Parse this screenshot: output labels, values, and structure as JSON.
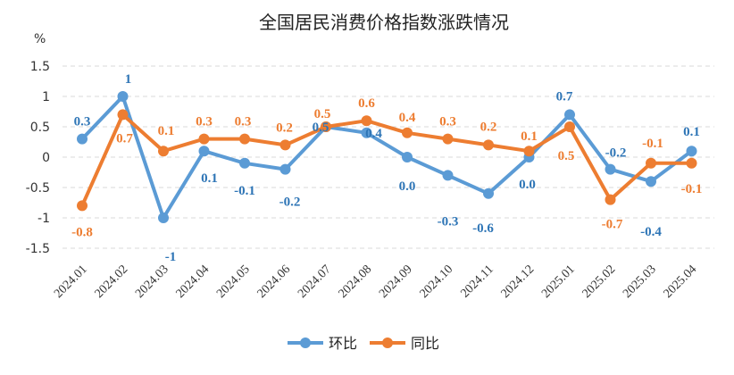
{
  "chart_data": {
    "type": "line",
    "title": "全国居民消费价格指数涨跌情况",
    "ylabel": "%",
    "xlabel": "",
    "ylim": [
      -1.5,
      1.5
    ],
    "yticks": [
      "1.5",
      "1",
      "0.5",
      "0",
      "-0.5",
      "-1",
      "-1.5"
    ],
    "grid": true,
    "legend_position": "bottom",
    "categories": [
      "2024.01",
      "2024.02",
      "2024.03",
      "2024.04",
      "2024.05",
      "2024.06",
      "2024.07",
      "2024.08",
      "2024.09",
      "2024.10",
      "2024.11",
      "2024.12",
      "2025.01",
      "2025.02",
      "2025.03",
      "2025.04"
    ],
    "series": [
      {
        "name": "环比",
        "color": "#5B9BD5",
        "label_color": "#2E75B6",
        "values": [
          0.3,
          1,
          -1,
          0.1,
          -0.1,
          -0.2,
          0.5,
          0.4,
          0.0,
          -0.3,
          -0.6,
          0.0,
          0.7,
          -0.2,
          -0.4,
          0.1
        ],
        "labels": [
          "0.3",
          "1",
          "-1",
          "0.1",
          "-0.1",
          "-0.2",
          "0.5",
          "0.4",
          "0.0",
          "-0.3",
          "-0.6",
          "0.0",
          "0.7",
          "-0.2",
          "-0.4",
          "0.1"
        ]
      },
      {
        "name": "同比",
        "color": "#ED7D31",
        "label_color": "#ED7D31",
        "values": [
          -0.8,
          0.7,
          0.1,
          0.3,
          0.3,
          0.2,
          0.5,
          0.6,
          0.4,
          0.3,
          0.2,
          0.1,
          0.5,
          -0.7,
          -0.1,
          -0.1
        ],
        "labels": [
          "-0.8",
          "0.7",
          "0.1",
          "0.3",
          "0.3",
          "0.2",
          "0.5",
          "0.6",
          "0.4",
          "0.3",
          "0.2",
          "0.1",
          "0.5",
          "-0.7",
          "-0.1",
          "-0.1"
        ]
      }
    ]
  }
}
